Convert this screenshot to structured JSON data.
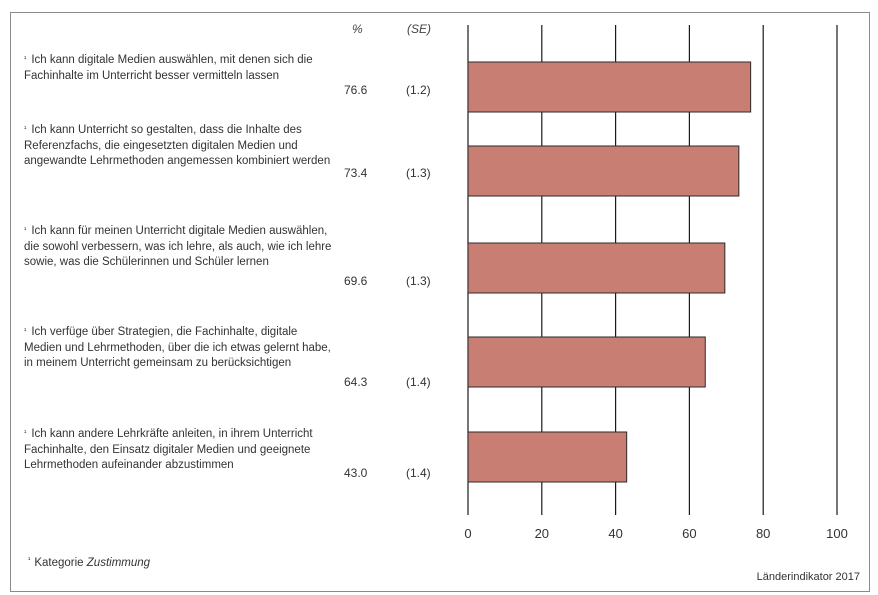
{
  "headers": {
    "pct": "%",
    "se": "(SE)"
  },
  "chart_data": {
    "type": "bar",
    "orientation": "horizontal",
    "marker": "¹",
    "categories": [
      "Ich kann digitale Medien auswählen, mit denen sich die Fachinhalte im Unterricht besser vermitteln lassen",
      "Ich kann Unterricht so gestalten, dass die Inhalte des Referenzfachs, die eingesetzten digitalen Medien und angewandte Lehrmethoden angemessen kombiniert werden",
      "Ich kann für meinen Unterricht digitale Medien auswählen, die sowohl verbessern, was ich lehre, als auch, wie ich lehre sowie, was die Schülerinnen und Schüler lernen",
      "Ich verfüge über Strategien, die Fachinhalte, digitale Medien und Lehrmethoden, über die ich etwas gelernt habe, in meinem Unterricht gemeinsam zu berücksichtigen",
      "Ich kann andere Lehrkräfte anleiten, in ihrem Unterricht Fachinhalte, den Einsatz digitaler Medien und geeignete Lehrmethoden aufeinander abzustimmen"
    ],
    "values": [
      76.6,
      73.4,
      69.6,
      64.3,
      43.0
    ],
    "value_labels": [
      "76.6",
      "73.4",
      "69.6",
      "64.3",
      "43.0"
    ],
    "se_labels": [
      "(1.2)",
      "(1.3)",
      "(1.3)",
      "(1.4)",
      "(1.4)"
    ],
    "xlim": [
      0,
      100
    ],
    "xticks": [
      "0",
      "20",
      "40",
      "60",
      "80",
      "100"
    ],
    "grid": true,
    "bar_color": "#c97e74",
    "bar_edge": "#2a2a2a"
  },
  "footnote": {
    "marker": "¹",
    "prefix": "Kategorie ",
    "italic": "Zustimmung"
  },
  "source": "Länderindikator 2017"
}
